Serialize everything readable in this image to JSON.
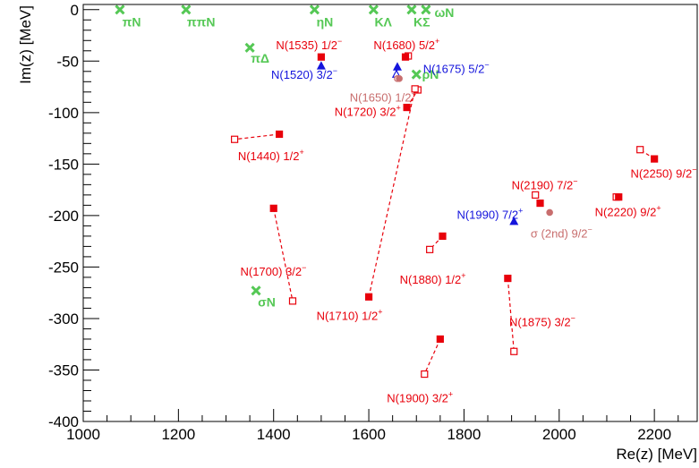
{
  "chart_data": {
    "type": "scatter",
    "xlabel": "Re(z) [MeV]",
    "ylabel": "Im(z) [MeV]",
    "xlim": [
      1000,
      2290
    ],
    "ylim": [
      -400,
      5
    ],
    "xticks": [
      1000,
      1200,
      1400,
      1600,
      1800,
      2000,
      2200
    ],
    "yticks": [
      0,
      -50,
      -100,
      -150,
      -200,
      -250,
      -300,
      -350,
      -400
    ],
    "grid": false,
    "colors": {
      "red": "#e8000b",
      "blue": "#1414dc",
      "green": "#55c855",
      "pink": "#c86e6e"
    },
    "thresholds": [
      {
        "label": "πN",
        "x": 1077,
        "y": 0,
        "lx": 1082,
        "ly": -12
      },
      {
        "label": "ππN",
        "x": 1216,
        "y": 0,
        "lx": 1218,
        "ly": -12
      },
      {
        "label": "ηN",
        "x": 1486,
        "y": 0,
        "lx": 1490,
        "ly": -12
      },
      {
        "label": "KΛ",
        "x": 1610,
        "y": 0,
        "lx": 1612,
        "ly": -12
      },
      {
        "label": "KΣ",
        "x": 1690,
        "y": 0,
        "lx": 1694,
        "ly": -12
      },
      {
        "label": "ωN",
        "x": 1720,
        "y": 0,
        "lx": 1738,
        "ly": -3
      },
      {
        "label": "πΔ",
        "x": 1350,
        "y": -37,
        "lx": 1352,
        "ly": -47
      },
      {
        "label": "ρN",
        "x": 1700,
        "y": -63,
        "lx": 1712,
        "ly": -63
      },
      {
        "label": "σN",
        "x": 1363,
        "y": -273,
        "lx": 1367,
        "ly": -284
      }
    ],
    "resonances": [
      {
        "label": "N(1535) 1/2",
        "sup": "−",
        "color": "red",
        "marker": "filled-square",
        "x": 1500,
        "y": -46,
        "x2": 1500,
        "y2": -46,
        "lx": 1405,
        "ly": -34
      },
      {
        "label": "N(1680) 5/2",
        "sup": "+",
        "color": "red",
        "marker": "filled-square",
        "x": 1677,
        "y": -46,
        "x2": 1683,
        "y2": -45,
        "lx": 1610,
        "ly": -34
      },
      {
        "label": "N(1520) 3/2",
        "sup": "−",
        "color": "blue",
        "marker": "filled-triangle",
        "x": 1500,
        "y": -55,
        "x2": 1500,
        "y2": -55,
        "lx": 1395,
        "ly": -63
      },
      {
        "label": "N(1675) 5/2",
        "sup": "−",
        "color": "blue",
        "marker": "filled-triangle",
        "x": 1660,
        "y": -56,
        "x2": 1658,
        "y2": -63,
        "lx": 1714,
        "ly": -57
      },
      {
        "label": "N(1650) 1/2",
        "sup": "−",
        "color": "pink",
        "marker": "filled-circle",
        "x": 1664,
        "y": -67,
        "x2": 1660,
        "y2": -67,
        "lx": 1560,
        "ly": -85
      },
      {
        "label": "N(1720) 3/2",
        "sup": "+",
        "color": "red",
        "marker": "filled-square",
        "x": 1680,
        "y": -95,
        "x2": 1703,
        "y2": -78,
        "lx": 1528,
        "ly": -99
      },
      {
        "label": "N(1440) 1/2",
        "sup": "+",
        "color": "red",
        "marker": "filled-square",
        "x": 1412,
        "y": -121,
        "x2": 1318,
        "y2": -126,
        "lx": 1325,
        "ly": -142
      },
      {
        "label": "N(2250) 9/2",
        "sup": "−",
        "color": "red",
        "marker": "filled-square",
        "x": 2200,
        "y": -145,
        "x2": 2170,
        "y2": -136,
        "lx": 2150,
        "ly": -159
      },
      {
        "label": "N(2190) 7/2",
        "sup": "−",
        "color": "red",
        "marker": "filled-square",
        "x": 1960,
        "y": -188,
        "x2": 1950,
        "y2": -180,
        "lx": 1900,
        "ly": -170
      },
      {
        "label": "N(2220) 9/2",
        "sup": "+",
        "color": "red",
        "marker": "filled-square",
        "x": 2125,
        "y": -182,
        "x2": 2120,
        "y2": -182,
        "lx": 2075,
        "ly": -196
      },
      {
        "label": "N(1990) 7/2",
        "sup": "+",
        "color": "blue",
        "marker": "filled-triangle",
        "x": 1905,
        "y": -206,
        "x2": 1905,
        "y2": -206,
        "lx": 1785,
        "ly": -199
      },
      {
        "label": "(2nd) 9/2",
        "sup": "−",
        "color": "pink",
        "marker": "filled-circle",
        "x": 1980,
        "y": -197,
        "x2": 1980,
        "y2": -197,
        "lx": 1940,
        "ly": -217
      },
      {
        "label": "N(1700) 3/2",
        "sup": "−",
        "color": "red",
        "marker": "filled-square",
        "x": 1400,
        "y": -193,
        "x2": 1440,
        "y2": -283,
        "lx": 1330,
        "ly": -254
      },
      {
        "label": "N(1880) 1/2",
        "sup": "+",
        "color": "red",
        "marker": "filled-square",
        "x": 1755,
        "y": -220,
        "x2": 1728,
        "y2": -233,
        "lx": 1665,
        "ly": -262
      },
      {
        "label": "N(1710) 1/2",
        "sup": "+",
        "color": "red",
        "marker": "filled-square",
        "x": 1600,
        "y": -279,
        "x2": 1697,
        "y2": -77,
        "lx": 1490,
        "ly": -297
      },
      {
        "label": "N(1875) 3/2",
        "sup": "−",
        "color": "red",
        "marker": "filled-square",
        "x": 1892,
        "y": -261,
        "x2": 1905,
        "y2": -332,
        "lx": 1895,
        "ly": -303
      },
      {
        "label": "N(1900) 3/2",
        "sup": "+",
        "color": "red",
        "marker": "filled-square",
        "x": 1750,
        "y": -320,
        "x2": 1717,
        "y2": -354,
        "lx": 1638,
        "ly": -377
      }
    ]
  }
}
